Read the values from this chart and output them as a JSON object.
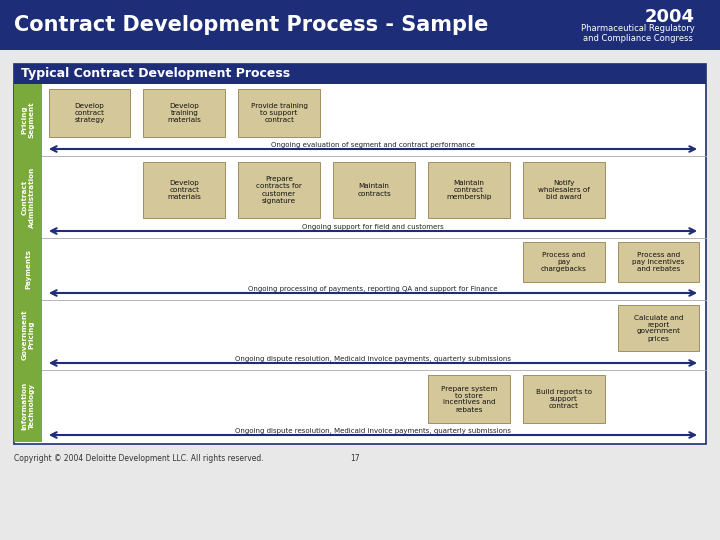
{
  "title": "Contract Development Process - Sample",
  "title_year": "2004",
  "title_subtitle": "Pharmaceutical Regulatory\nand Compliance Congress",
  "header_bg": "#1e2d78",
  "header_text_color": "#ffffff",
  "section_header": "Typical Contract Development Process",
  "section_header_bg": "#1e2d78",
  "outer_border": "#1e2d78",
  "row_label_bg": "#7aaa3c",
  "row_label_text": "#ffffff",
  "box_bg": "#d4c89a",
  "box_border": "#a09060",
  "arrow_color": "#1e2d78",
  "rows": [
    {
      "label": "Pricing\nSegment",
      "boxes": [
        {
          "col": 0,
          "text": "Develop\ncontract\nstrategy"
        },
        {
          "col": 1,
          "text": "Develop\ntraining\nmaterials"
        },
        {
          "col": 2,
          "text": "Provide training\nto support\ncontract"
        }
      ],
      "arrow_text": "Ongoing evaluation of segment and contract performance"
    },
    {
      "label": "Contract\nAdministration",
      "boxes": [
        {
          "col": 1,
          "text": "Develop\ncontract\nmaterials"
        },
        {
          "col": 2,
          "text": "Prepare\ncontracts for\ncustomer\nsignature"
        },
        {
          "col": 3,
          "text": "Maintain\ncontracts"
        },
        {
          "col": 4,
          "text": "Maintain\ncontract\nmembership"
        },
        {
          "col": 5,
          "text": "Notify\nwholesalers of\nbid award"
        }
      ],
      "arrow_text": "Ongoing support for field and customers"
    },
    {
      "label": "Payments",
      "boxes": [
        {
          "col": 5,
          "text": "Process and\npay\nchargebacks"
        },
        {
          "col": 6,
          "text": "Process and\npay incentives\nand rebates"
        }
      ],
      "arrow_text": "Ongoing processing of payments, reporting QA and support for Finance"
    },
    {
      "label": "Government\nPricing",
      "boxes": [
        {
          "col": 6,
          "text": "Calculate and\nreport\ngovernment\nprices"
        }
      ],
      "arrow_text": "Ongoing dispute resolution, Medicaid invoice payments, quarterly submissions"
    },
    {
      "label": "Information\nTechnology",
      "boxes": [
        {
          "col": 4,
          "text": "Prepare system\nto store\nincentives and\nrebates"
        },
        {
          "col": 5,
          "text": "Build reports to\nsupport\ncontract"
        }
      ],
      "arrow_text": "Ongoing dispute resolution, Medicaid invoice payments, quarterly submissions"
    }
  ],
  "footer_text": "Copyright © 2004 Deloitte Development LLC. All rights reserved.",
  "footer_page": "17",
  "num_cols": 7,
  "page_bg": "#e8e8e8"
}
